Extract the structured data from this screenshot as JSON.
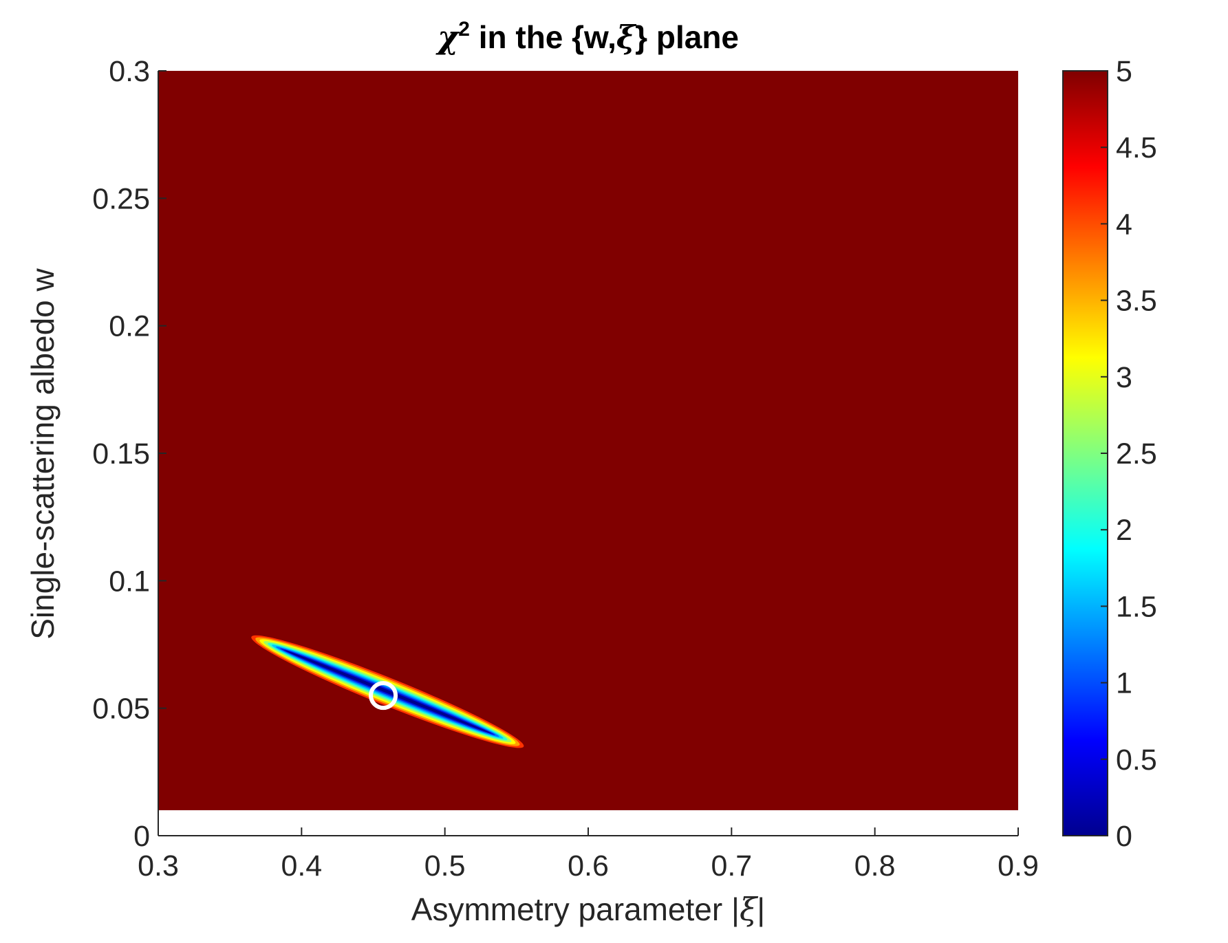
{
  "chart_data": {
    "type": "heatmap",
    "title": {
      "chi": "χ",
      "sup": "2",
      "pre": " in the {w,",
      "xi": "ξ",
      "post": "} plane"
    },
    "xlabel": {
      "text": "Asymmetry parameter |",
      "symbol": "ξ",
      "end": "|"
    },
    "ylabel": "Single-scattering albedo w",
    "xlim": [
      0.3,
      0.9
    ],
    "ylim": [
      0,
      0.3
    ],
    "xticks": [
      0.3,
      0.4,
      0.5,
      0.6,
      0.7,
      0.8,
      0.9
    ],
    "xtick_labels": [
      "0.3",
      "0.4",
      "0.5",
      "0.6",
      "0.7",
      "0.8",
      "0.9"
    ],
    "yticks": [
      0,
      0.05,
      0.1,
      0.15,
      0.2,
      0.25,
      0.3
    ],
    "ytick_labels": [
      "0",
      "0.05",
      "0.1",
      "0.15",
      "0.2",
      "0.25",
      "0.3"
    ],
    "data_extent": {
      "x": [
        0.3,
        0.9
      ],
      "y": [
        0.01,
        0.3
      ]
    },
    "color_limits": [
      0,
      5
    ],
    "colormap": "jet",
    "saturated_color": "#800000",
    "grid": false,
    "colorbar": {
      "ticks": [
        0,
        0.5,
        1,
        1.5,
        2,
        2.5,
        3,
        3.5,
        4,
        4.5,
        5
      ],
      "tick_labels": [
        "0",
        "0.5",
        "1",
        "1.5",
        "2",
        "2.5",
        "3",
        "3.5",
        "4",
        "4.5",
        "5"
      ],
      "placement": "right"
    },
    "valley": {
      "description_values": "low chi-square band",
      "start": {
        "x": 0.365,
        "w": 0.078
      },
      "end": {
        "x": 0.555,
        "w": 0.035
      }
    },
    "best_fit": {
      "x": 0.457,
      "w": 0.055,
      "marker": "circle",
      "color": "#ffffff"
    }
  }
}
